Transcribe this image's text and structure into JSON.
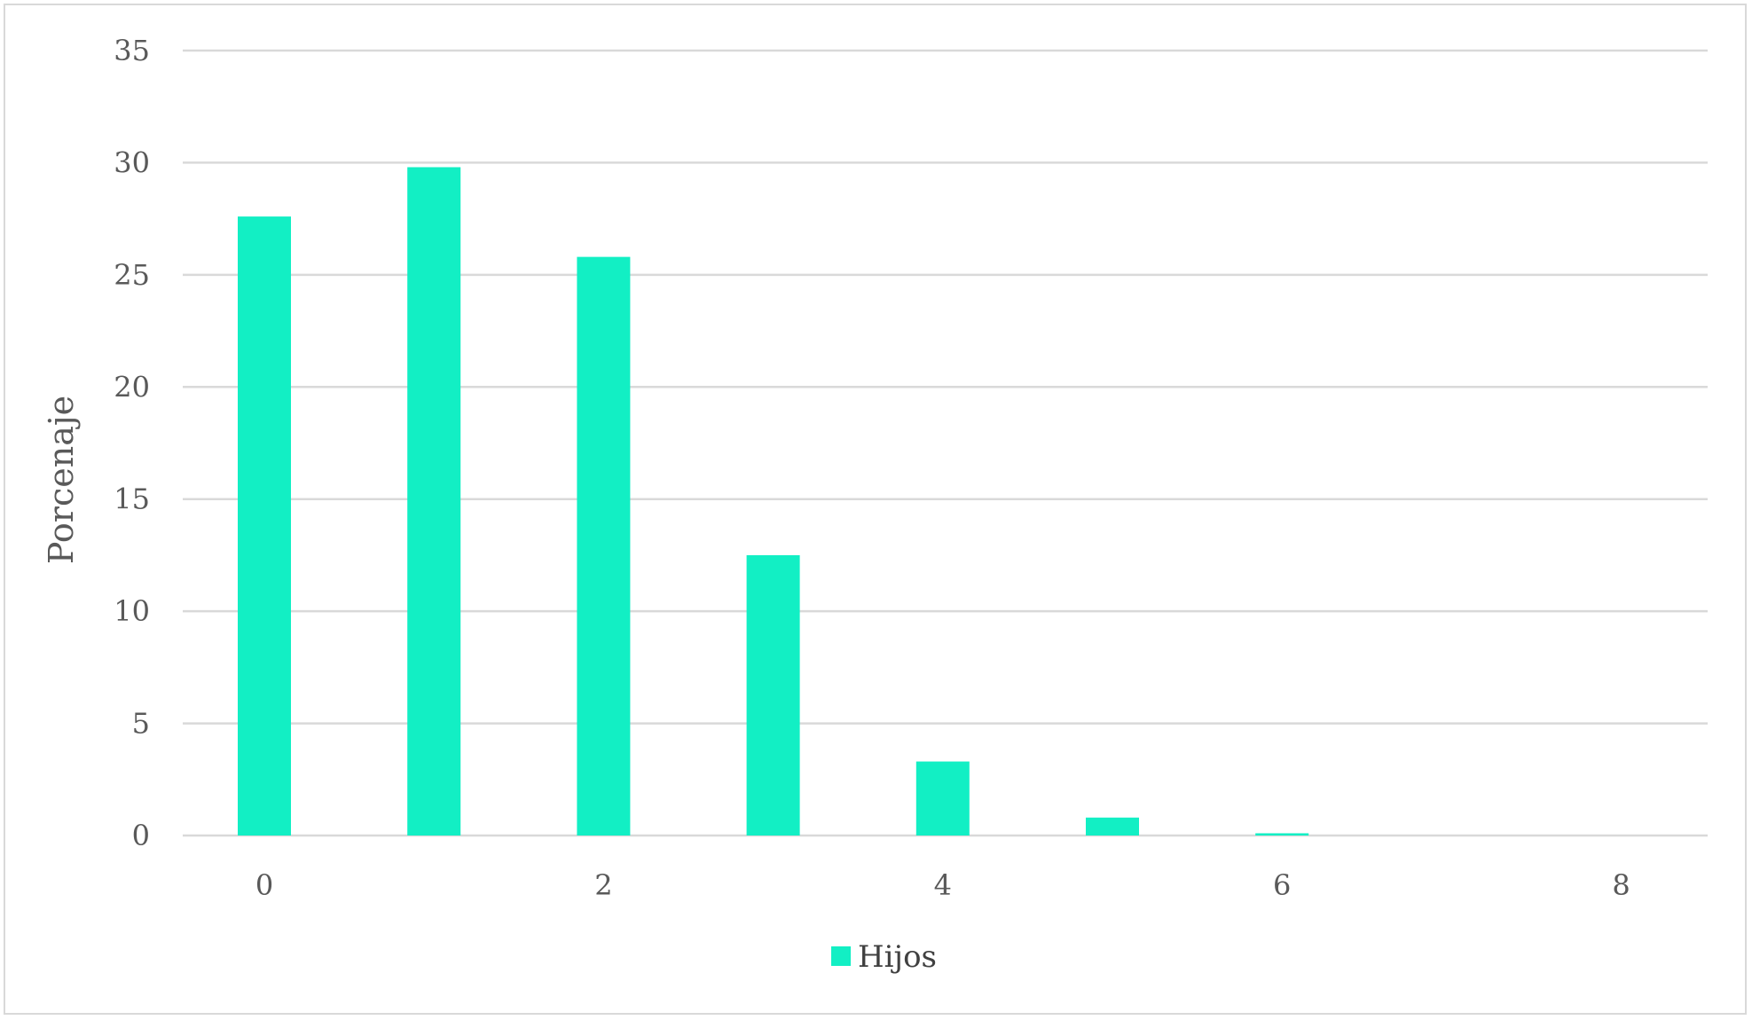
{
  "chart_data": {
    "type": "bar",
    "title": "",
    "xlabel": "",
    "ylabel": "Porcenaje",
    "categories": [
      0,
      1,
      2,
      3,
      4,
      5,
      6,
      7,
      8
    ],
    "x_tick_labels": [
      "0",
      "2",
      "4",
      "6",
      "8"
    ],
    "y_ticks": [
      0,
      5,
      10,
      15,
      20,
      25,
      30,
      35
    ],
    "ylim": [
      0,
      35
    ],
    "series": [
      {
        "name": "Hijos",
        "color": "#12EFC4",
        "values": [
          27.6,
          29.8,
          25.8,
          12.5,
          3.3,
          0.8,
          0.1,
          0,
          0
        ]
      }
    ],
    "grid": true,
    "legend_position": "bottom"
  }
}
